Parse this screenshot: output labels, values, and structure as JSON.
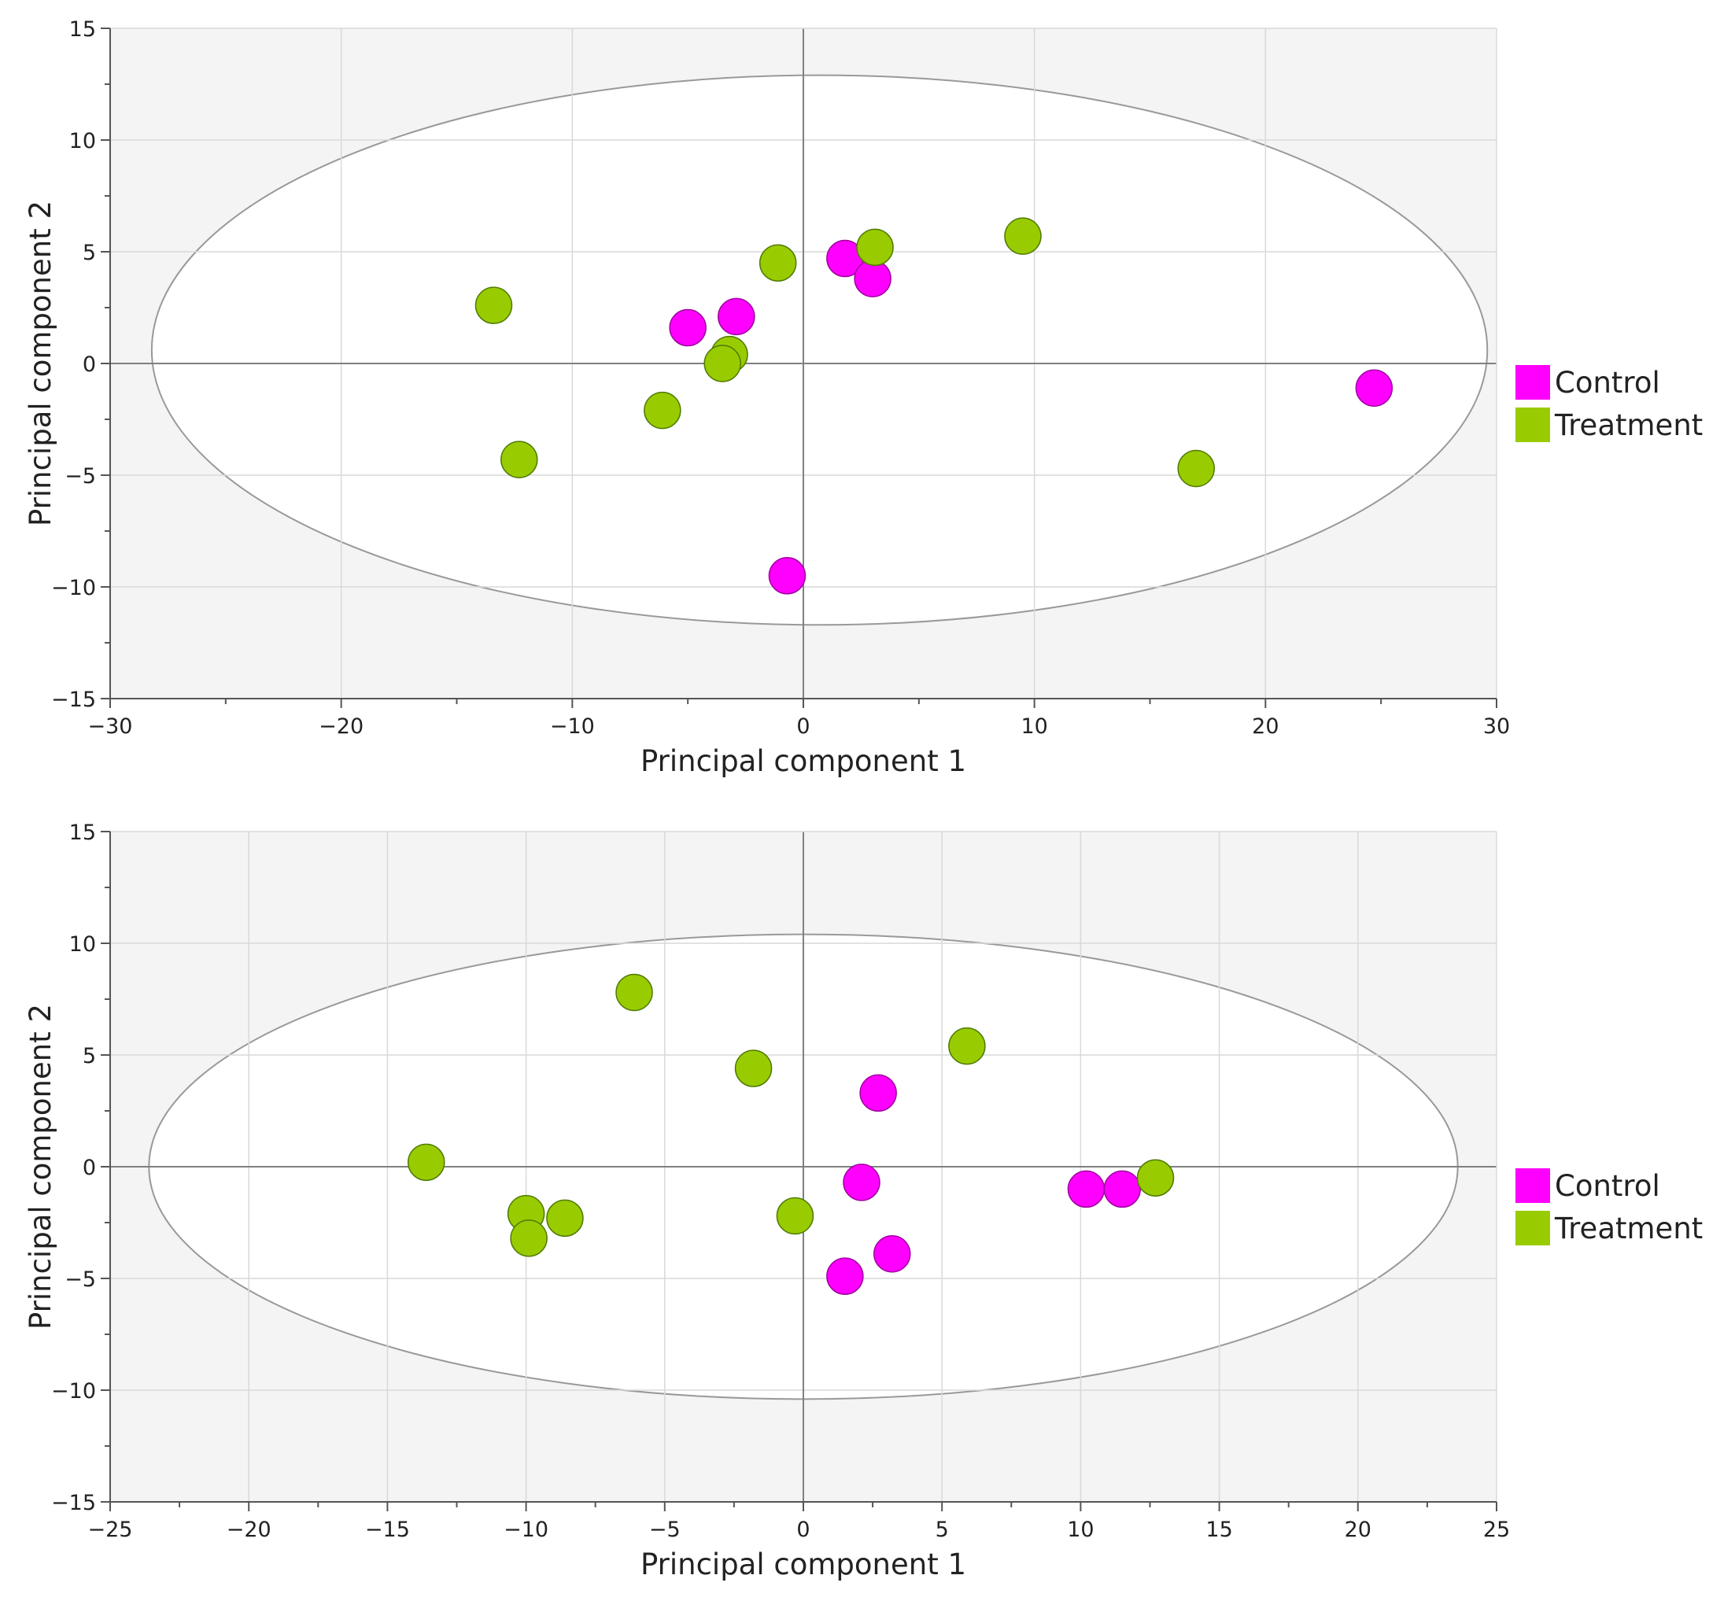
{
  "chart_data": [
    {
      "type": "scatter",
      "xlabel": "Principal component 1",
      "ylabel": "Principal component 2",
      "xlim": [
        -30,
        30
      ],
      "ylim": [
        -15,
        15
      ],
      "xticks": [
        -30,
        -20,
        -10,
        0,
        10,
        20,
        30
      ],
      "yticks": [
        -15,
        -10,
        -5,
        0,
        5,
        10,
        15
      ],
      "grid": true,
      "legend_placement": "right",
      "ellipse": {
        "cx": 0.7,
        "cy": 0.6,
        "rx": 28.9,
        "ry": 12.3
      },
      "series": [
        {
          "name": "Control",
          "color": "#ff00ff",
          "points": [
            [
              1.8,
              4.7
            ],
            [
              3.0,
              3.8
            ],
            [
              -2.9,
              2.1
            ],
            [
              -5.0,
              1.6
            ],
            [
              -0.7,
              -9.5
            ],
            [
              24.7,
              -1.1
            ]
          ]
        },
        {
          "name": "Treatment",
          "color": "#99cc00",
          "points": [
            [
              3.1,
              5.2
            ],
            [
              9.5,
              5.7
            ],
            [
              -1.1,
              4.5
            ],
            [
              -13.4,
              2.6
            ],
            [
              -3.2,
              0.4
            ],
            [
              -3.5,
              0.0
            ],
            [
              -6.1,
              -2.1
            ],
            [
              -12.3,
              -4.3
            ],
            [
              17.0,
              -4.7
            ]
          ]
        }
      ]
    },
    {
      "type": "scatter",
      "xlabel": "Principal component 1",
      "ylabel": "Principal component 2",
      "xlim": [
        -25,
        25
      ],
      "ylim": [
        -15,
        15
      ],
      "xticks": [
        -25,
        -20,
        -15,
        -10,
        -5,
        0,
        5,
        10,
        15,
        20,
        25
      ],
      "yticks": [
        -15,
        -10,
        -5,
        0,
        5,
        10,
        15
      ],
      "grid": true,
      "legend_placement": "right",
      "ellipse": {
        "cx": 0.0,
        "cy": 0.0,
        "rx": 23.6,
        "ry": 10.4
      },
      "series": [
        {
          "name": "Control",
          "color": "#ff00ff",
          "points": [
            [
              2.7,
              3.3
            ],
            [
              2.1,
              -0.7
            ],
            [
              10.2,
              -1.0
            ],
            [
              11.5,
              -1.0
            ],
            [
              3.2,
              -3.9
            ],
            [
              1.5,
              -4.9
            ]
          ]
        },
        {
          "name": "Treatment",
          "color": "#99cc00",
          "points": [
            [
              -6.1,
              7.8
            ],
            [
              -1.8,
              4.4
            ],
            [
              5.9,
              5.4
            ],
            [
              -13.6,
              0.2
            ],
            [
              -10.0,
              -2.1
            ],
            [
              -8.6,
              -2.3
            ],
            [
              -9.9,
              -3.2
            ],
            [
              -0.3,
              -2.2
            ],
            [
              12.7,
              -0.5
            ]
          ]
        }
      ]
    }
  ]
}
